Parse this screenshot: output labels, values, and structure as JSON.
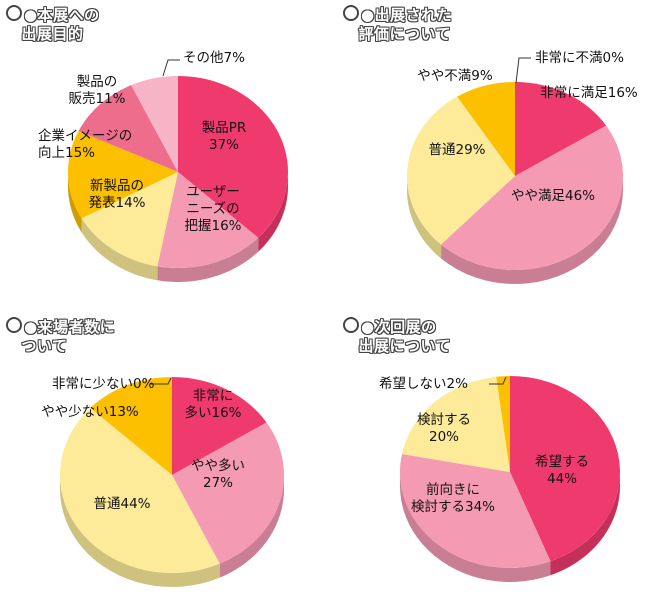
{
  "colors": {
    "deep_pink": "#ef3a6e",
    "mid_pink": "#ee6d8d",
    "pink": "#f59ab3",
    "light_pink": "#f8b4c7",
    "gold": "#fcc000",
    "cream": "#fdeb9a"
  },
  "chart_data": [
    {
      "type": "pie",
      "title": "●本展への\n　出展目的",
      "slices": [
        {
          "label": "製品PR\n37%",
          "value": 37,
          "color": "#ef3a6e"
        },
        {
          "label": "ユーザー\nニーズの\n把握16%",
          "value": 16,
          "color": "#f59ab3"
        },
        {
          "label": "新製品の\n発表14%",
          "value": 14,
          "color": "#fdeb9a"
        },
        {
          "label": "企業イメージの\n向上15%",
          "value": 15,
          "color": "#fcc000"
        },
        {
          "label": "製品の\n販売11%",
          "value": 11,
          "color": "#ee6d8d"
        },
        {
          "label": "その他7%",
          "value": 7,
          "color": "#f8b4c7"
        }
      ]
    },
    {
      "type": "pie",
      "title": "●出展された\n　評価について",
      "slices": [
        {
          "label": "非常に満足16%",
          "value": 16,
          "color": "#ef3a6e"
        },
        {
          "label": "やや満足46%",
          "value": 46,
          "color": "#f59ab3"
        },
        {
          "label": "普通29%",
          "value": 29,
          "color": "#fdeb9a"
        },
        {
          "label": "やや不満9%",
          "value": 9,
          "color": "#fcc000"
        },
        {
          "label": "非常に不満0%",
          "value": 0,
          "color": "#ef3a6e"
        }
      ]
    },
    {
      "type": "pie",
      "title": "●来場者数に\n　ついて",
      "slices": [
        {
          "label": "非常に\n多い16%",
          "value": 16,
          "color": "#ef3a6e"
        },
        {
          "label": "やや多い\n27%",
          "value": 27,
          "color": "#f59ab3"
        },
        {
          "label": "普通44%",
          "value": 44,
          "color": "#fdeb9a"
        },
        {
          "label": "やや少ない13%",
          "value": 13,
          "color": "#fcc000"
        },
        {
          "label": "非常に少ない0%",
          "value": 0,
          "color": "#ef3a6e"
        }
      ]
    },
    {
      "type": "pie",
      "title": "●次回展の\n　出展について",
      "slices": [
        {
          "label": "希望する\n44%",
          "value": 44,
          "color": "#ef3a6e"
        },
        {
          "label": "前向きに\n検討する34%",
          "value": 34,
          "color": "#f59ab3"
        },
        {
          "label": "検討する\n20%",
          "value": 20,
          "color": "#fdeb9a"
        },
        {
          "label": "希望しない2%",
          "value": 2,
          "color": "#fcc000"
        }
      ]
    }
  ]
}
